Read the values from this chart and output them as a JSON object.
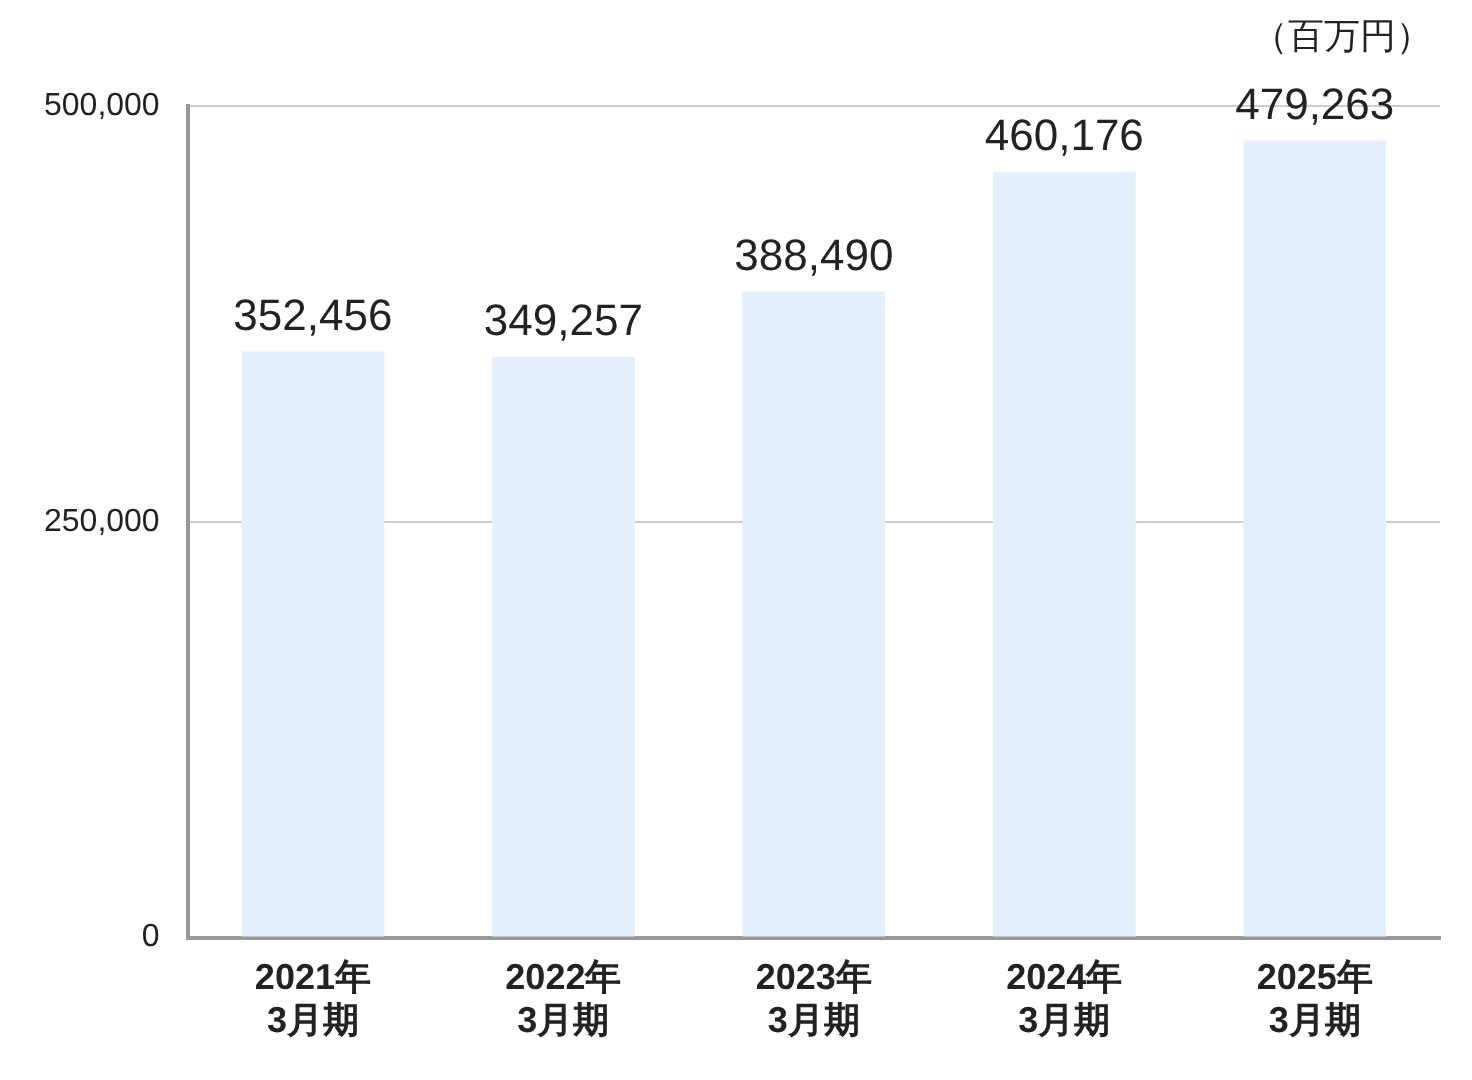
{
  "chart_data": {
    "type": "bar",
    "categories": [
      "2021年\n3月期",
      "2022年\n3月期",
      "2023年\n3月期",
      "2024年\n3月期",
      "2025年\n3月期"
    ],
    "values": [
      352456,
      349257,
      388490,
      460176,
      479263
    ],
    "value_labels": [
      "352,456",
      "349,257",
      "388,490",
      "460,176",
      "479,263"
    ],
    "color": "#e3f0fc",
    "ylim": [
      0,
      500000
    ],
    "yticks": [
      0,
      {
        "value": 250000,
        "label": "250,000"
      },
      {
        "value": 500000,
        "label": "500,000"
      }
    ],
    "grid": "y",
    "legend": false,
    "annotations": [
      "（百万円）"
    ]
  }
}
